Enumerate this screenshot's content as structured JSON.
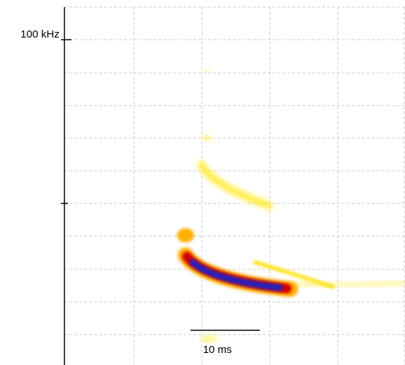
{
  "frequency_label": "100 kHz",
  "scale_bar_label": "10 ms"
}
